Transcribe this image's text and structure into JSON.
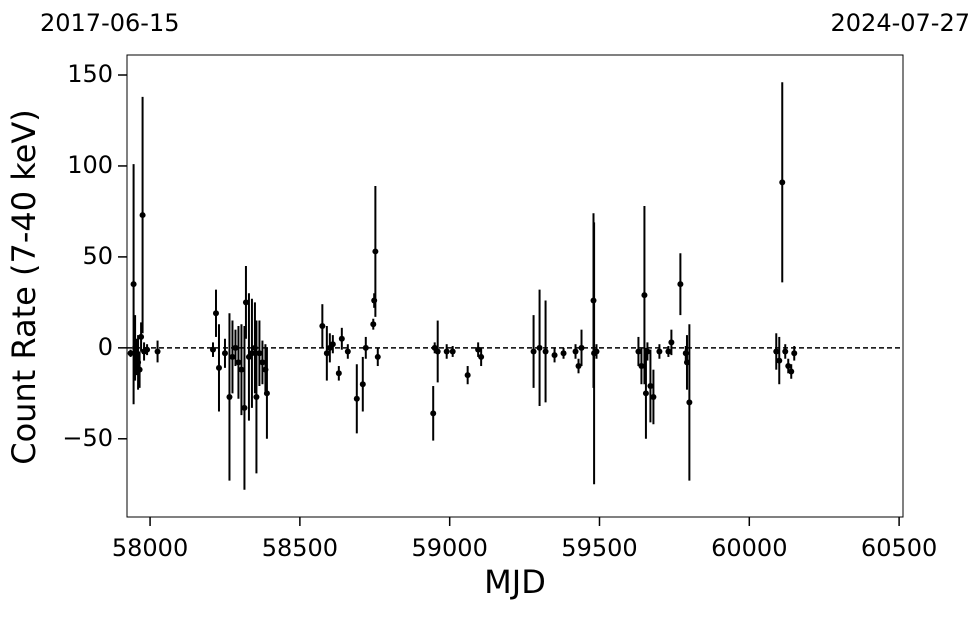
{
  "chart_data": {
    "type": "errorbar",
    "xlabel": "MJD",
    "ylabel": "Count Rate (7-40 keV)",
    "annotations": [
      "2017-06-15",
      "2024-07-27"
    ],
    "xlim": [
      57923,
      60513
    ],
    "ylim": [
      -93,
      161
    ],
    "xticks": [
      58000,
      58500,
      59000,
      59500,
      60000,
      60500
    ],
    "yticks": [
      {
        "value": -50,
        "label": "−50"
      },
      0,
      50,
      100,
      150
    ],
    "hline": 0,
    "color": "#000000",
    "x": [
      57935,
      57945,
      57950,
      57955,
      57960,
      57962,
      57965,
      57970,
      57975,
      57980,
      57990,
      58025,
      58210,
      58220,
      58230,
      58250,
      58265,
      58275,
      58285,
      58295,
      58305,
      58315,
      58320,
      58330,
      58340,
      58350,
      58355,
      58365,
      58375,
      58385,
      58390,
      58575,
      58590,
      58600,
      58610,
      58630,
      58640,
      58660,
      58690,
      58710,
      58720,
      58745,
      58748,
      58752,
      58760,
      58945,
      58950,
      58960,
      58990,
      59010,
      59060,
      59095,
      59105,
      59280,
      59300,
      59320,
      59350,
      59380,
      59420,
      59430,
      59440,
      59480,
      59482,
      59490,
      59630,
      59640,
      59650,
      59655,
      59660,
      59670,
      59680,
      59700,
      59730,
      59740,
      59770,
      59788,
      59792,
      59800,
      60090,
      60100,
      60110,
      60120,
      60130,
      60140,
      60150
    ],
    "values": [
      -3,
      35,
      0,
      -5,
      -8,
      -12,
      -12,
      6,
      73,
      -2,
      -1,
      -2,
      -1,
      19,
      -11,
      -3,
      -27,
      -5,
      0,
      -8,
      -12,
      -33,
      25,
      -5,
      -3,
      0,
      -27,
      -3,
      -8,
      -12,
      -25,
      12,
      -3,
      0,
      2,
      -14,
      5,
      -2,
      -28,
      -20,
      0,
      13,
      26,
      53,
      -5,
      -36,
      0,
      -2,
      -2,
      -2,
      -15,
      -1,
      -5,
      -2,
      0,
      -2,
      -4,
      -3,
      -2,
      -10,
      0,
      26,
      -3,
      -2,
      -2,
      -10,
      29,
      -25,
      -2,
      -21,
      -27,
      -2,
      -2,
      3,
      35,
      -3,
      -8,
      -30,
      -2,
      -7,
      91,
      -2,
      -10,
      -13,
      -3
    ],
    "errors": [
      2,
      66,
      18,
      10,
      15,
      8,
      10,
      8,
      65,
      5,
      3,
      6,
      4,
      13,
      24,
      8,
      46,
      20,
      10,
      20,
      25,
      45,
      20,
      35,
      30,
      25,
      42,
      18,
      12,
      14,
      25,
      12,
      15,
      8,
      5,
      4,
      6,
      4,
      19,
      15,
      6,
      3,
      4,
      36,
      5,
      15,
      3,
      17,
      4,
      3,
      5,
      4,
      5,
      20,
      32,
      28,
      4,
      3,
      4,
      4,
      10,
      48,
      72,
      4,
      8,
      10,
      49,
      25,
      5,
      20,
      15,
      4,
      3,
      7,
      17,
      4,
      15,
      43,
      10,
      13,
      55,
      4,
      4,
      4,
      4
    ]
  }
}
